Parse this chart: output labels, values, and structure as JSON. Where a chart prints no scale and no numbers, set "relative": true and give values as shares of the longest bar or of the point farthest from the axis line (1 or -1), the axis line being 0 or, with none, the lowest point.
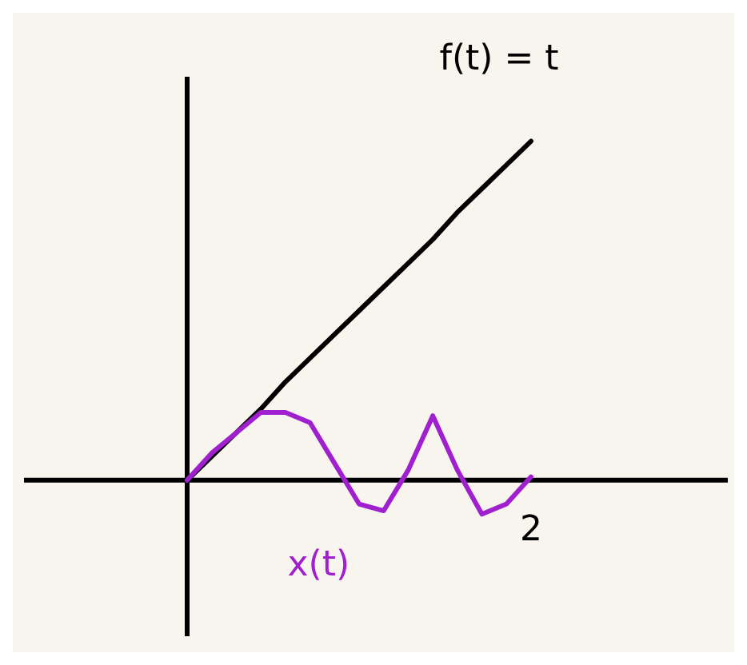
{
  "chart_data": {
    "type": "line",
    "relative": true,
    "legend": false,
    "annotations": [
      "2"
    ],
    "categories": [
      null,
      null,
      null,
      null,
      null,
      null,
      null,
      null,
      null,
      null,
      null,
      null,
      null,
      null,
      null
    ],
    "series": [
      {
        "name": "f(t) = t",
        "color": "#000000",
        "values": [
          0,
          0.07,
          0.14,
          0.21,
          0.29,
          0.36,
          0.43,
          0.5,
          0.57,
          0.64,
          0.71,
          0.79,
          0.86,
          0.93,
          1
        ]
      },
      {
        "name": "x(t)",
        "color": "#a020d0",
        "values": [
          0,
          0.08,
          0.14,
          0.2,
          0.2,
          0.17,
          0.05,
          -0.07,
          -0.09,
          0.03,
          0.19,
          0.03,
          -0.1,
          -0.07,
          0.01
        ]
      }
    ]
  }
}
